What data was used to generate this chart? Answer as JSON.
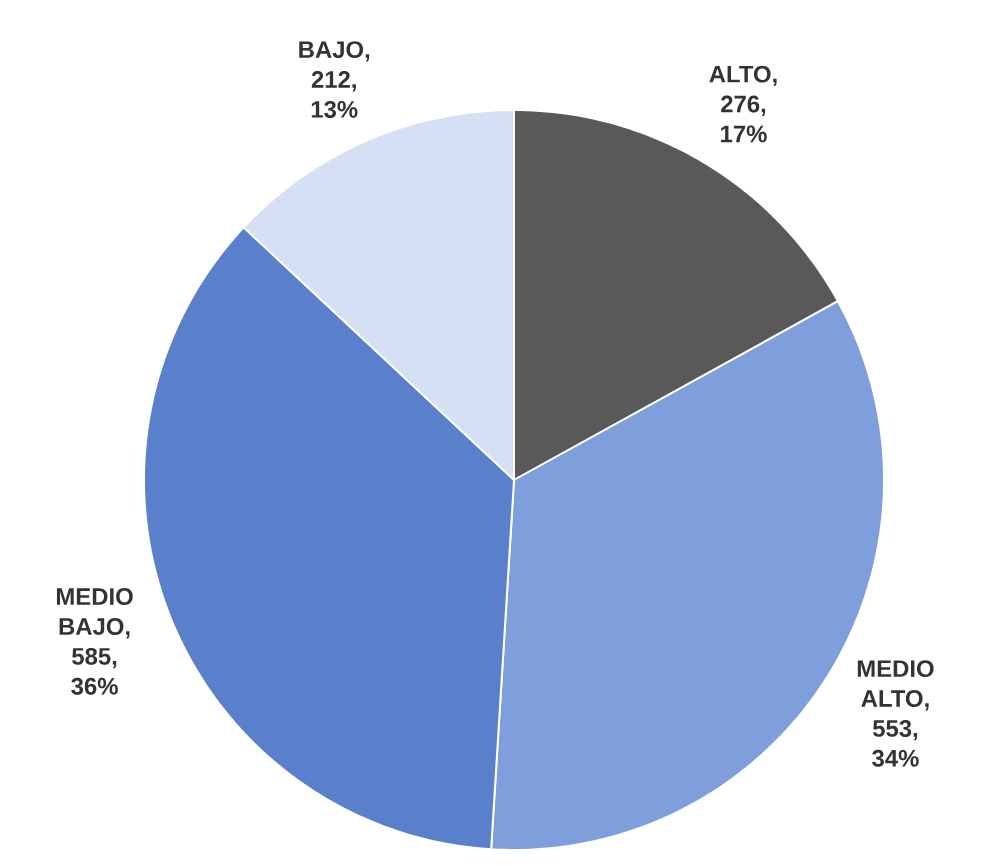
{
  "chart_data": {
    "type": "pie",
    "categories": [
      "ALTO",
      "MEDIO ALTO",
      "MEDIO BAJO",
      "BAJO"
    ],
    "values": [
      276,
      553,
      585,
      212
    ],
    "value_labels": [
      ", 276, 17%",
      ", 553, 34%",
      ", 585, 36%",
      ", 212, 13%"
    ],
    "colors": [
      "#595959",
      "#7f9fdc",
      "#5a80cc",
      "#d6e0f4"
    ]
  }
}
